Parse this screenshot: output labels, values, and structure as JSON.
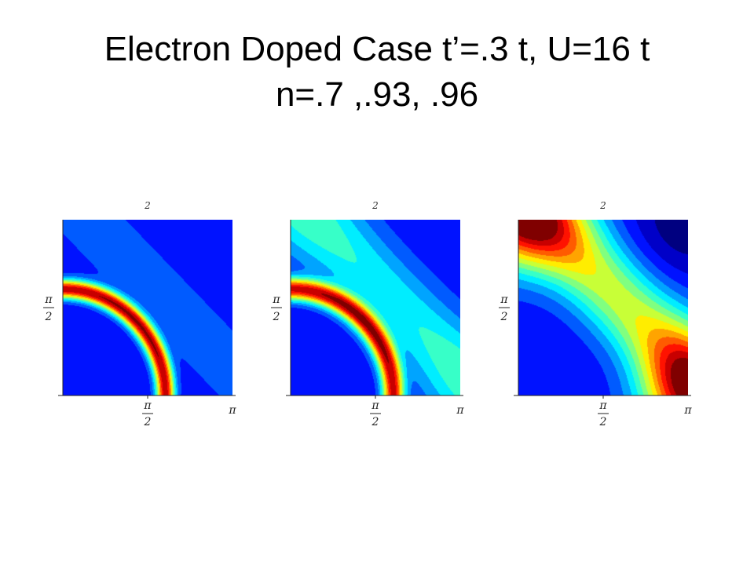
{
  "title": {
    "line1": "Electron Doped Case t’=.3 t, U=16 t",
    "line2": "n=.7 ,.93, .96"
  },
  "chart_data": [
    {
      "type": "heatmap",
      "n": 0.7,
      "xlim": [
        0,
        3.1416
      ],
      "ylim": [
        0,
        3.1416
      ],
      "ticks": {
        "top": "2",
        "y_pi": "π",
        "y_den": "2",
        "x_pi": "π",
        "x_den": "2",
        "x_end": "π"
      },
      "features": {
        "ring": 1.0,
        "diag": 0.12,
        "tl": 0.0,
        "br": 0.0,
        "width": 0.17,
        "radius": 1.9,
        "tr": 0.0
      }
    },
    {
      "type": "heatmap",
      "n": 0.93,
      "xlim": [
        0,
        3.1416
      ],
      "ylim": [
        0,
        3.1416
      ],
      "ticks": {
        "top": "2",
        "y_pi": "π",
        "y_den": "2",
        "x_pi": "π",
        "x_den": "2",
        "x_end": "π"
      },
      "features": {
        "ring": 0.95,
        "diag": 0.32,
        "tl": 0.1,
        "br": 0.1,
        "width": 0.2,
        "radius": 1.9,
        "tr": 0.0
      }
    },
    {
      "type": "heatmap",
      "n": 0.96,
      "xlim": [
        0,
        3.1416
      ],
      "ylim": [
        0,
        3.1416
      ],
      "ticks": {
        "top": "2",
        "y_pi": "π",
        "y_den": "2",
        "x_pi": "π",
        "x_den": "2",
        "x_end": "π"
      },
      "features": {
        "ring": 0.0,
        "diag": 0.55,
        "tl": 0.78,
        "br": 0.72,
        "width": 0.45,
        "radius": 3.1,
        "tr": 0.18
      }
    }
  ]
}
